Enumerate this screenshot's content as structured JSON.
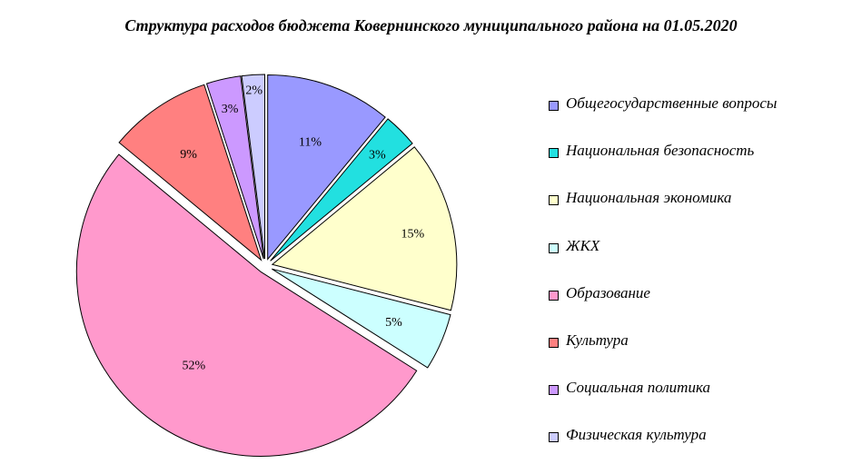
{
  "chart_data": {
    "type": "pie",
    "title": "Структура расходов бюджета Ковернинского муниципального района на 01.05.2020",
    "legend_position": "right",
    "slices": [
      {
        "name": "Общегосударственные вопросы",
        "value": 11,
        "label": "11%",
        "color": "#9999ff"
      },
      {
        "name": "Национальная безопасность",
        "value": 3,
        "label": "3%",
        "color": "#22e0e0"
      },
      {
        "name": "Национальная экономика",
        "value": 15,
        "label": "15%",
        "color": "#ffffcc"
      },
      {
        "name": "ЖКХ",
        "value": 5,
        "label": "5%",
        "color": "#ccffff"
      },
      {
        "name": "Образование",
        "value": 52,
        "label": "52%",
        "color": "#ff99cc"
      },
      {
        "name": "Культура",
        "value": 9,
        "label": "9%",
        "color": "#ff8080"
      },
      {
        "name": "Социальная политика",
        "value": 3,
        "label": "3%",
        "color": "#cc99ff"
      },
      {
        "name": "Физическая культура",
        "value": 2,
        "label": "2%",
        "color": "#ccccff"
      }
    ]
  }
}
